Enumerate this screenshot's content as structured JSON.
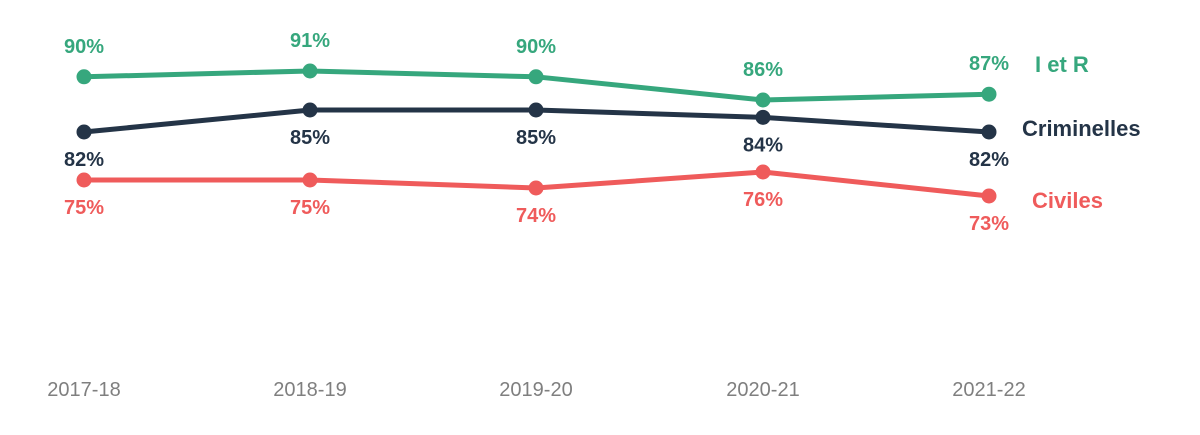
{
  "chart_data": {
    "type": "line",
    "categories": [
      "2017-18",
      "2018-19",
      "2019-20",
      "2020-21",
      "2021-22"
    ],
    "series": [
      {
        "name": "I et R",
        "color": "#36a77d",
        "values": [
          90,
          91,
          90,
          86,
          87
        ],
        "labels": [
          "90%",
          "91%",
          "90%",
          "86%",
          "87%"
        ],
        "label_position": "above"
      },
      {
        "name": "Criminelles",
        "color": "#243447",
        "values": [
          82,
          85,
          85,
          84,
          82
        ],
        "labels": [
          "82%",
          "85%",
          "85%",
          "84%",
          "82%"
        ],
        "label_position": "below"
      },
      {
        "name": "Civiles",
        "color": "#ef5b5b",
        "values": [
          75,
          75,
          74,
          76,
          73
        ],
        "labels": [
          "75%",
          "75%",
          "74%",
          "76%",
          "73%"
        ],
        "label_position": "below"
      }
    ],
    "legend": "inline-right",
    "grid": false,
    "y_axis_visible": false
  }
}
